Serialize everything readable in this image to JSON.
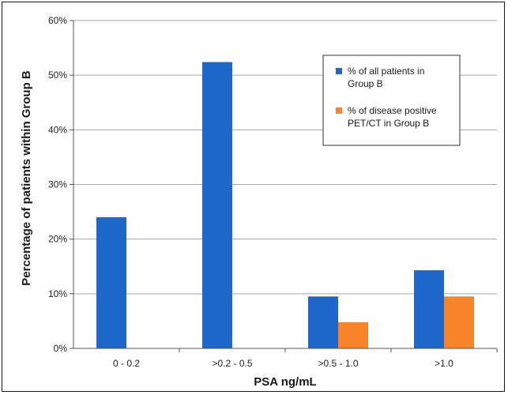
{
  "chart_data": {
    "type": "bar",
    "categories": [
      "0 - 0.2",
      ">0.2 - 0.5",
      ">0.5 - 1.0",
      ">1.0"
    ],
    "series": [
      {
        "name": "% of all patients in Group B",
        "legend_lines": [
          "% of all patients in",
          "Group B"
        ],
        "values": [
          24,
          52.4,
          9.5,
          14.3
        ],
        "color": "#1f68c9"
      },
      {
        "name": "% of disease positive PET/CT in Group B",
        "legend_lines": [
          "% of disease positive",
          "PET/CT in Group B"
        ],
        "values": [
          0,
          0,
          4.8,
          9.5
        ],
        "color": "#f7842a"
      }
    ],
    "xlabel": "PSA ng/mL",
    "ylabel": "Percentage of patients within Group B",
    "ylim": [
      0,
      60
    ],
    "yticks": [
      0,
      10,
      20,
      30,
      40,
      50,
      60
    ],
    "ytick_labels": [
      "0%",
      "10%",
      "20%",
      "30%",
      "40%",
      "50%",
      "60%"
    ],
    "grid": true,
    "legend_position": "top-right",
    "grid_color": "#a6a6a6"
  }
}
